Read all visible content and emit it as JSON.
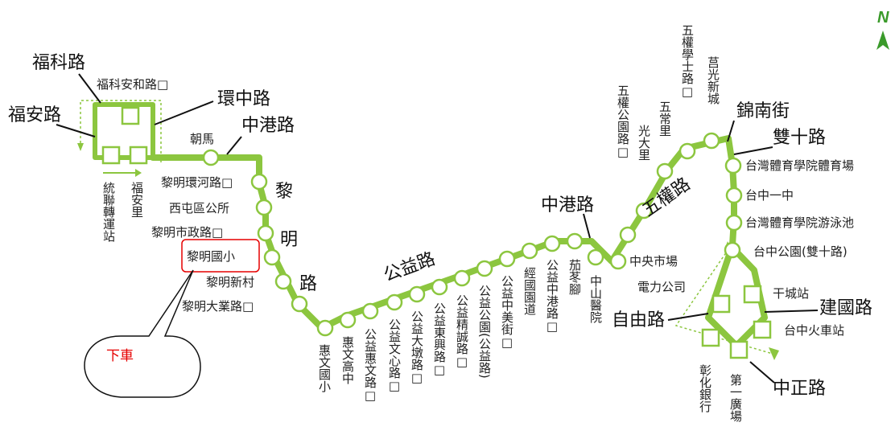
{
  "map": {
    "colors": {
      "route": "#8cc63f",
      "stop_fill": "#ffffff",
      "text": "#222222",
      "highlight": "#e60000",
      "callout": "#e60000"
    },
    "north_icon": "north-arrow-icon",
    "north_label": "N",
    "roads": {
      "fuke": "福科路",
      "fuan": "福安路",
      "huanzhong": "環中路",
      "zhonggang_top": "中港路",
      "liming": [
        "黎",
        "明",
        "路"
      ],
      "gongyi": "公益路",
      "zhonggang_mid": "中港路",
      "wuquan": "五權路",
      "jinnan": "錦南街",
      "shuangshi": "雙十路",
      "jianguo": "建國路",
      "ziyou": "自由路",
      "zhongzheng": "中正路"
    },
    "stops_horizontal": {
      "fuke_anhe": "福科安和路口",
      "zhaoma": "朝馬",
      "liming_huanhe": "黎明環河路口",
      "xitun_office": "西屯區公所",
      "liming_city": "黎明市政路口",
      "liming_elem": "黎明國小",
      "liming_village": "黎明新村",
      "liming_daye": "黎明大業路口",
      "zhongyang_market": "中央市場",
      "sports_uni_gym": "台灣體育學院體育場",
      "taichung_first": "台中一中",
      "sports_uni_pool": "台灣體育學院游泳池",
      "taichung_park": "台中公園(雙十路)",
      "power_company": "電力公司",
      "gancheng": "干城站",
      "taichung_station": "台中火車站"
    },
    "stops_vertical": {
      "tonglian": "統聯轉運站",
      "fuan_li": "福安里",
      "huiwen_elem": "惠文國小",
      "huiwen_high": "惠文高中",
      "gongyi_huiwen": "公益惠文路口",
      "gongyi_wenxin": "公益文心路口",
      "gongyi_dadun": "公益大墩路口",
      "gongyi_dongxing": "公益東興路口",
      "gongyi_jingcheng": "公益精誠路口",
      "gongyi_park": "公益公園(公益路)",
      "gongyi_zhongmei": "公益中美街口",
      "jingguo_avenue": "經國園道",
      "gongyi_zhonggang": "公益中港路口",
      "jiadongjiao": "茄苳腳",
      "zhongshan_hospital": "中山醫院",
      "wuquan_park": "五權公園路口",
      "guangda_li": "光大里",
      "wuchang_li": "五常里",
      "wuquan_xueshi": "五權學士路口",
      "juguang_xincheng": "莒光新城",
      "changhua_bank": "彰化銀行",
      "first_plaza": "第一廣場"
    },
    "callout": {
      "text": "下車"
    }
  }
}
